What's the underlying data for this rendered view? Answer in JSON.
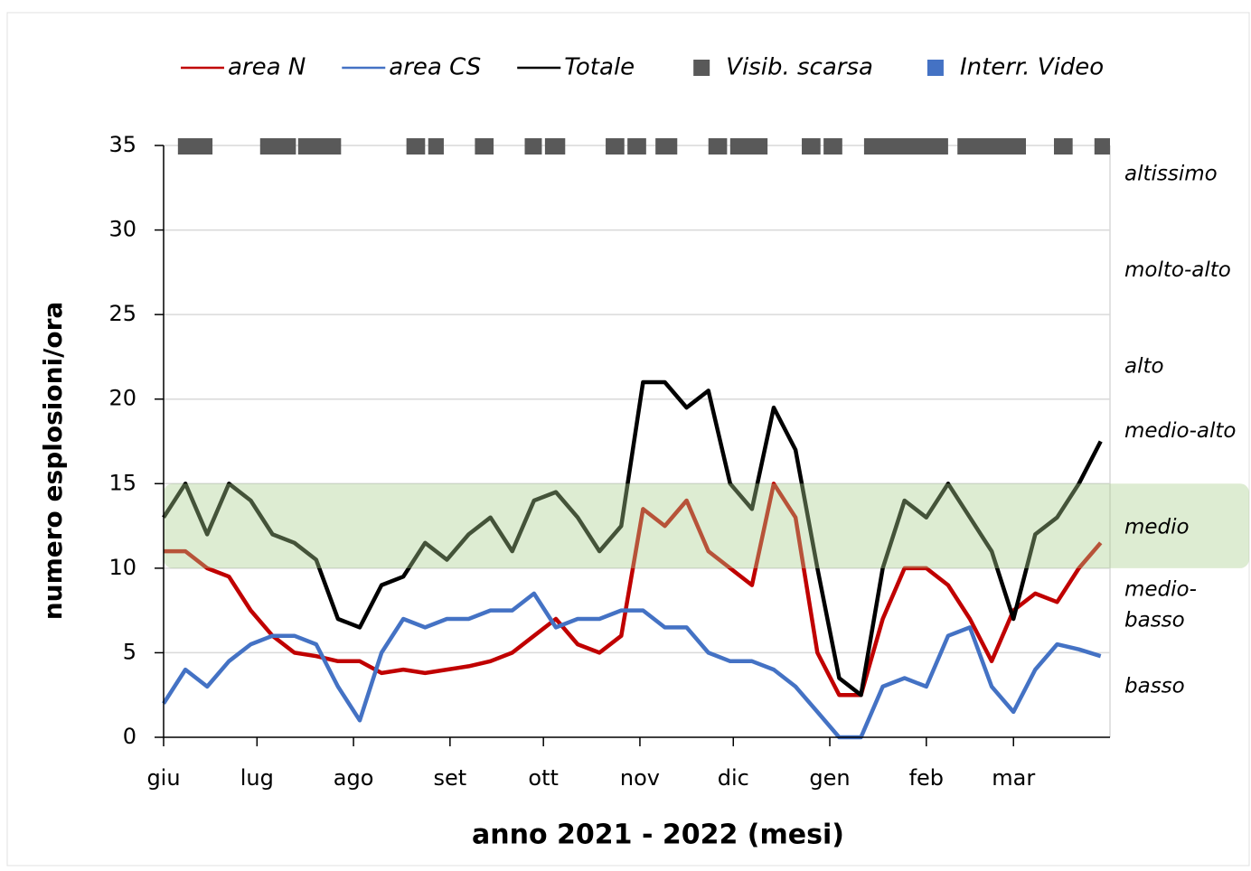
{
  "chart_data": {
    "type": "line",
    "x_label": "anno 2021 - 2022 (mesi)",
    "y_label": "numero esplosioni/ora",
    "xlim": [
      0,
      304
    ],
    "xticks": [
      {
        "value": 0,
        "label": "giu"
      },
      {
        "value": 30,
        "label": "lug"
      },
      {
        "value": 61,
        "label": "ago"
      },
      {
        "value": 92,
        "label": "set"
      },
      {
        "value": 122,
        "label": "ott"
      },
      {
        "value": 153,
        "label": "nov"
      },
      {
        "value": 183,
        "label": "dic"
      },
      {
        "value": 214,
        "label": "gen"
      },
      {
        "value": 245,
        "label": "feb"
      },
      {
        "value": 273,
        "label": "mar"
      }
    ],
    "ylim": [
      0,
      35
    ],
    "yticks": [
      0,
      5,
      10,
      15,
      20,
      25,
      30,
      35
    ],
    "grid": true,
    "x": [
      0,
      7,
      14,
      21,
      28,
      35,
      42,
      49,
      56,
      63,
      70,
      77,
      84,
      91,
      98,
      105,
      112,
      119,
      126,
      133,
      140,
      147,
      154,
      161,
      168,
      175,
      182,
      189,
      196,
      203,
      210,
      217,
      224,
      231,
      238,
      245,
      252,
      259,
      266,
      273,
      280,
      287,
      294,
      301
    ],
    "series": [
      {
        "name": "area N",
        "color": "#c00000",
        "values": [
          11,
          11,
          10,
          9.5,
          7.5,
          6,
          5,
          4.8,
          4.5,
          4.5,
          3.8,
          4,
          3.8,
          4,
          4.2,
          4.5,
          5,
          6,
          7,
          5.5,
          5,
          6,
          13.5,
          12.5,
          14,
          11,
          10,
          9,
          15,
          13,
          5,
          2.5,
          2.5,
          7,
          10,
          10,
          9,
          7,
          4.5,
          7.5,
          8.5,
          8,
          10,
          11.5
        ]
      },
      {
        "name": "area CS",
        "color": "#4472c4",
        "values": [
          2,
          4,
          3,
          4.5,
          5.5,
          6,
          6,
          5.5,
          3,
          1,
          5,
          7,
          6.5,
          7,
          7,
          7.5,
          7.5,
          8.5,
          6.5,
          7,
          7,
          7.5,
          7.5,
          6.5,
          6.5,
          5,
          4.5,
          4.5,
          4,
          3,
          1.5,
          0,
          0,
          3,
          3.5,
          3,
          6,
          6.5,
          3,
          1.5,
          4,
          5.5,
          5.2,
          4.8
        ]
      },
      {
        "name": "Totale",
        "color": "#000000",
        "values": [
          13,
          15,
          12,
          15,
          14,
          12,
          11.5,
          10.5,
          7,
          6.5,
          9,
          9.5,
          11.5,
          10.5,
          12,
          13,
          11,
          14,
          14.5,
          13,
          11,
          12.5,
          21,
          21,
          19.5,
          20.5,
          15,
          13.5,
          19.5,
          17,
          10,
          3.5,
          2.5,
          10,
          14,
          13,
          15,
          13,
          11,
          7,
          12,
          13,
          15,
          17.5
        ]
      }
    ],
    "markers": [
      {
        "name": "Visib. scarsa",
        "color": "#595959",
        "intervals": [
          [
            4.6,
            15.7
          ],
          [
            31,
            42.5
          ],
          [
            43.2,
            57
          ],
          [
            78,
            84
          ],
          [
            85,
            90
          ],
          [
            100,
            106
          ],
          [
            116,
            121.5
          ],
          [
            122.5,
            129
          ],
          [
            142,
            148
          ],
          [
            149,
            155
          ],
          [
            158,
            165
          ],
          [
            175,
            181
          ],
          [
            182,
            194
          ],
          [
            205,
            211
          ],
          [
            212,
            218
          ],
          [
            225,
            252
          ],
          [
            255,
            277
          ],
          [
            286,
            292
          ],
          [
            299,
            304
          ]
        ]
      },
      {
        "name": "Interr. Video",
        "color": "#4472c4",
        "intervals": []
      }
    ],
    "level_band": [
      10,
      15
    ],
    "levels": [
      {
        "label": "altissimo",
        "y": 33.3
      },
      {
        "label": "molto-alto",
        "y": 27.6
      },
      {
        "label": "alto",
        "y": 21.9
      },
      {
        "label": "medio-alto",
        "y": 18.1
      },
      {
        "label": "medio",
        "y": 12.4
      },
      {
        "label": "medio-",
        "y": 8.7
      },
      {
        "label": "basso",
        "y": 6.9
      },
      {
        "label": "basso",
        "y": 3.0
      }
    ]
  }
}
